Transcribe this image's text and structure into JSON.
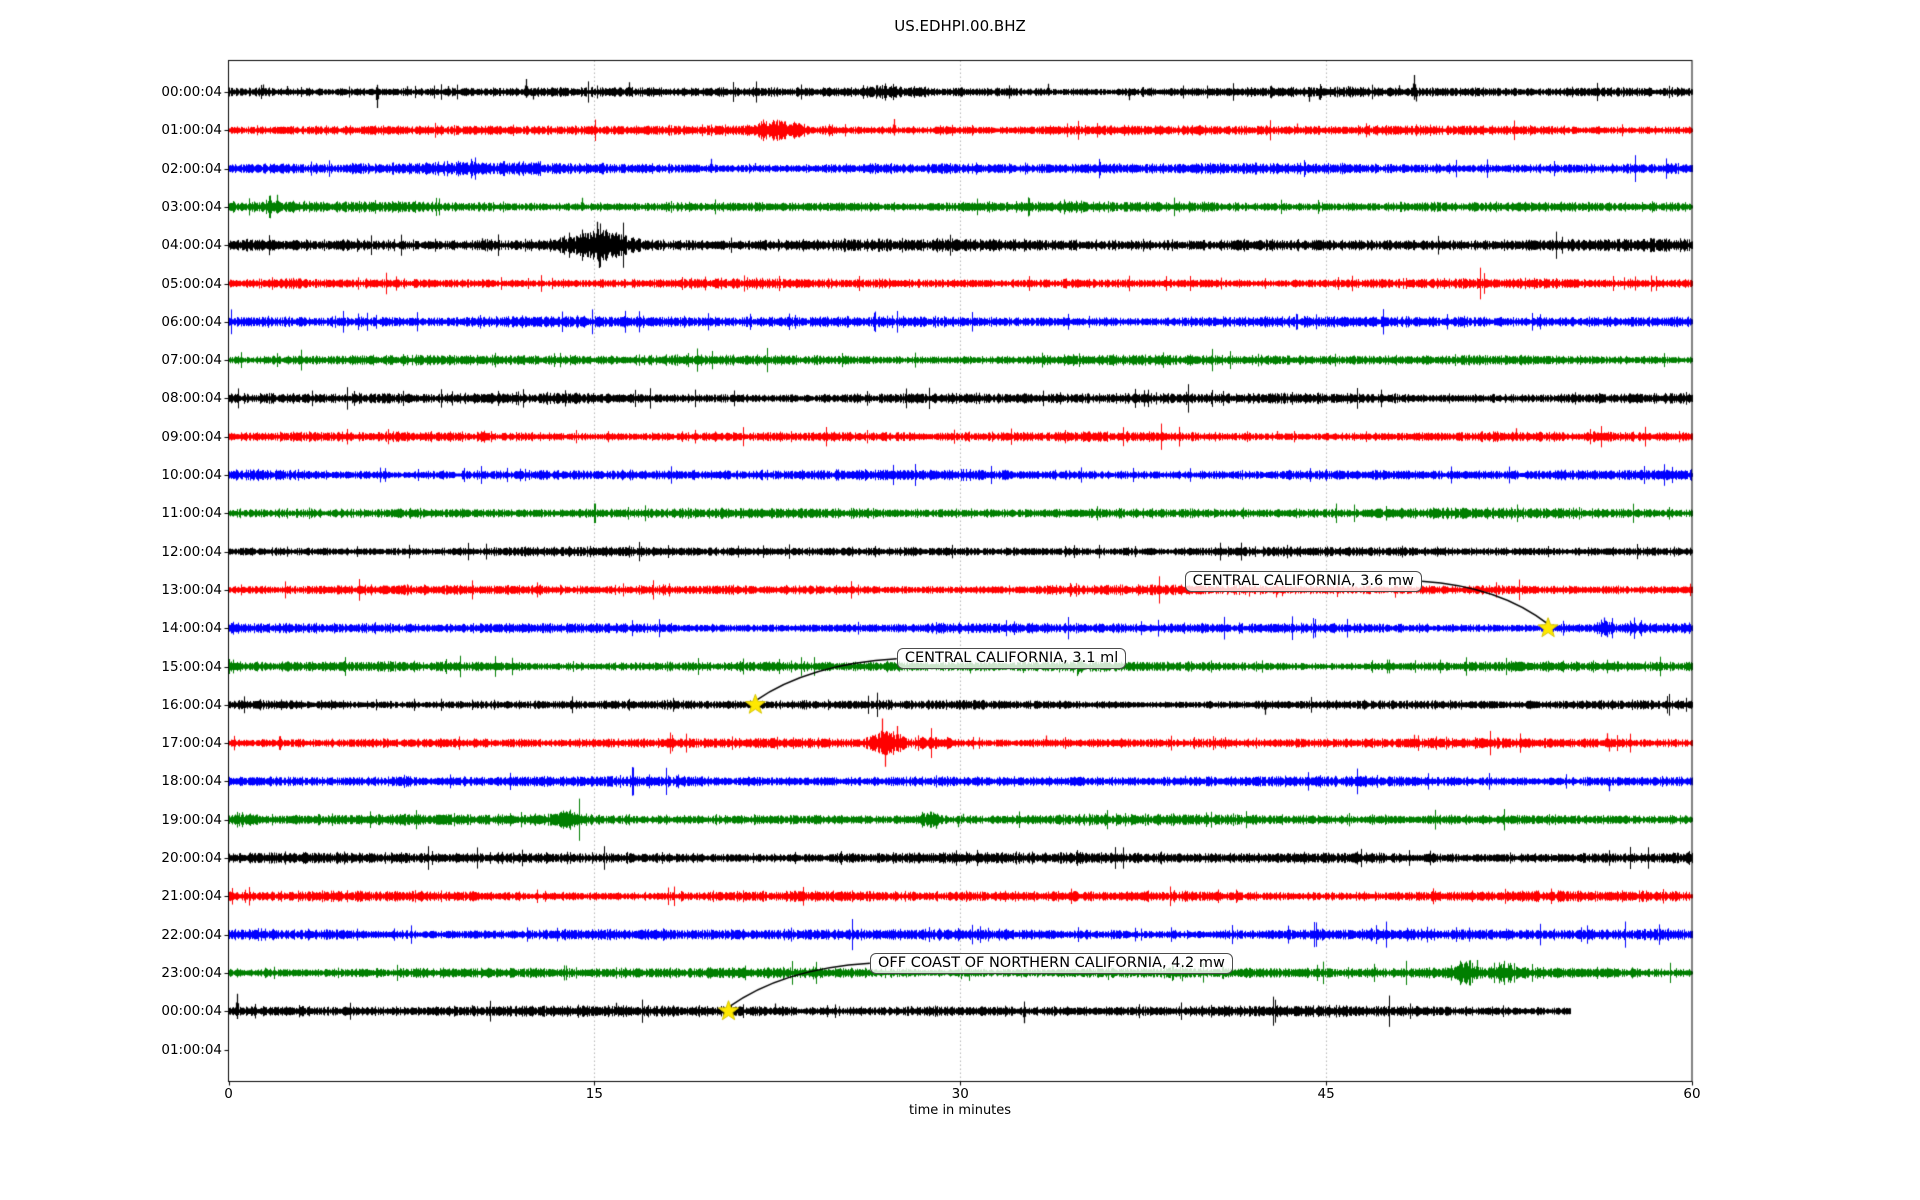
{
  "page": {
    "title": "US.EDHPI.00.BHZ"
  },
  "chart_data": {
    "type": "line",
    "subtype": "helicorder-dayplot",
    "title": "US.EDHPI.00.BHZ",
    "xlabel": "time in minutes",
    "xlim": [
      0,
      60
    ],
    "x_ticks": [
      "0",
      "15",
      "30",
      "45",
      "60"
    ],
    "grid_minutes": [
      15,
      30,
      45
    ],
    "grid_on": true,
    "trace_color_cycle": [
      "#000000",
      "#ff0000",
      "#0000ff",
      "#007f00"
    ],
    "marker": {
      "shape": "star",
      "color": "#ffe800"
    },
    "rows": [
      {
        "label": "00:00:04",
        "color": "#000000",
        "amp": 1.0,
        "trace": true,
        "events": [
          {
            "x": 26.9,
            "w": 1.6,
            "amp": 1.6
          }
        ],
        "spikes": [
          {
            "x": 1.4,
            "a": 2.0
          },
          {
            "x": 2.4,
            "a": 1.6
          },
          {
            "x": 6.1,
            "a": -4.2
          },
          {
            "x": 7.3,
            "a": 1.5
          },
          {
            "x": 9.0,
            "a": 1.6
          },
          {
            "x": 12.2,
            "a": 3.4
          },
          {
            "x": 12.5,
            "a": -2.0
          },
          {
            "x": 16.4,
            "a": 2.6
          },
          {
            "x": 26.6,
            "a": 1.8
          },
          {
            "x": 33.6,
            "a": 2.2
          },
          {
            "x": 36.9,
            "a": -2.2
          },
          {
            "x": 44.3,
            "a": -2.6
          },
          {
            "x": 44.7,
            "a": -2.0
          },
          {
            "x": 45.9,
            "a": 1.6
          },
          {
            "x": 48.0,
            "a": 1.8
          },
          {
            "x": 48.6,
            "a": 4.5
          },
          {
            "x": 48.7,
            "a": -2.5
          }
        ]
      },
      {
        "label": "01:00:04",
        "color": "#ff0000",
        "amp": 1.0,
        "trace": true,
        "events": [
          {
            "x": 22.4,
            "w": 1.4,
            "amp": 2.6
          },
          {
            "x": 23.3,
            "w": 0.8,
            "amp": 2.1
          },
          {
            "x": 24.6,
            "w": 0.5,
            "amp": 1.5
          },
          {
            "x": 29.4,
            "w": 0.6,
            "amp": 1.7
          },
          {
            "x": 30.5,
            "w": 0.4,
            "amp": 1.4
          }
        ],
        "spikes": [
          {
            "x": 27.3,
            "a": 3.0
          },
          {
            "x": 21.9,
            "a": -2.2
          },
          {
            "x": 43.8,
            "a": 1.8
          }
        ]
      },
      {
        "label": "02:00:04",
        "color": "#0000ff",
        "amp": 1.1,
        "trace": true,
        "events": [
          {
            "x": 8.8,
            "w": 3.5,
            "amp": 1.45
          },
          {
            "x": 12.0,
            "w": 2.0,
            "amp": 1.35
          },
          {
            "x": 5.2,
            "w": 1.0,
            "amp": 1.3
          }
        ],
        "spikes": [
          {
            "x": 19.8,
            "a": 2.6
          },
          {
            "x": 21.6,
            "a": 1.5
          },
          {
            "x": 26.5,
            "a": 1.4
          },
          {
            "x": 36.5,
            "a": 1.4
          }
        ]
      },
      {
        "label": "03:00:04",
        "color": "#007f00",
        "amp": 1.05,
        "trace": true,
        "events": [
          {
            "x": 1.8,
            "w": 1.2,
            "amp": 1.5
          }
        ],
        "spikes": [
          {
            "x": 2.0,
            "a": 3.2
          },
          {
            "x": 3.1,
            "a": 1.6
          },
          {
            "x": 14.5,
            "a": 2.4
          }
        ]
      },
      {
        "label": "04:00:04",
        "color": "#000000",
        "amp": 1.25,
        "trace": true,
        "events": [
          {
            "x": 15.2,
            "w": 2.4,
            "amp": 3.0
          },
          {
            "x": 14.3,
            "w": 0.8,
            "amp": 2.0
          }
        ],
        "spikes": [
          {
            "x": 15.1,
            "a": 6.2
          },
          {
            "x": 15.2,
            "a": -6.0
          },
          {
            "x": 14.6,
            "a": 3.2
          },
          {
            "x": 14.7,
            "a": -2.8
          },
          {
            "x": 15.6,
            "a": 3.2
          },
          {
            "x": 16.1,
            "a": 2.4
          },
          {
            "x": 16.2,
            "a": -2.2
          },
          {
            "x": 10.4,
            "a": 1.8
          }
        ]
      },
      {
        "label": "05:00:04",
        "color": "#ff0000",
        "amp": 1.0,
        "trace": true,
        "events": [
          {
            "x": 2.6,
            "w": 1.2,
            "amp": 1.35
          }
        ],
        "spikes": []
      },
      {
        "label": "06:00:04",
        "color": "#0000ff",
        "amp": 1.12,
        "trace": true,
        "events": [
          {
            "x": 5.0,
            "w": 8.0,
            "amp": 1.15
          }
        ],
        "spikes": []
      },
      {
        "label": "07:00:04",
        "color": "#007f00",
        "amp": 1.05,
        "trace": true,
        "events": [],
        "spikes": []
      },
      {
        "label": "08:00:04",
        "color": "#000000",
        "amp": 1.1,
        "trace": true,
        "events": [],
        "spikes": []
      },
      {
        "label": "09:00:04",
        "color": "#ff0000",
        "amp": 1.0,
        "trace": true,
        "events": [],
        "spikes": [
          {
            "x": 52.8,
            "a": 2.2
          },
          {
            "x": 43.0,
            "a": 1.5
          }
        ]
      },
      {
        "label": "10:00:04",
        "color": "#0000ff",
        "amp": 1.05,
        "trace": true,
        "events": [],
        "spikes": []
      },
      {
        "label": "11:00:04",
        "color": "#007f00",
        "amp": 1.05,
        "trace": true,
        "events": [],
        "spikes": []
      },
      {
        "label": "12:00:04",
        "color": "#000000",
        "amp": 0.95,
        "trace": true,
        "events": [],
        "spikes": []
      },
      {
        "label": "13:00:04",
        "color": "#ff0000",
        "amp": 1.0,
        "trace": true,
        "events": [],
        "spikes": []
      },
      {
        "label": "14:00:04",
        "color": "#0000ff",
        "amp": 1.05,
        "trace": true,
        "events": [
          {
            "x": 56.4,
            "w": 0.5,
            "amp": 1.8
          }
        ],
        "spikes": [
          {
            "x": 56.4,
            "a": 2.8
          },
          {
            "x": 56.5,
            "a": -2.4
          }
        ]
      },
      {
        "label": "15:00:04",
        "color": "#007f00",
        "amp": 1.05,
        "trace": true,
        "events": [],
        "spikes": []
      },
      {
        "label": "16:00:04",
        "color": "#000000",
        "amp": 0.95,
        "trace": true,
        "events": [],
        "spikes": [
          {
            "x": 42.5,
            "a": -2.6
          }
        ]
      },
      {
        "label": "17:00:04",
        "color": "#ff0000",
        "amp": 1.0,
        "trace": true,
        "events": [
          {
            "x": 27.0,
            "w": 1.3,
            "amp": 3.2
          },
          {
            "x": 28.7,
            "w": 0.9,
            "amp": 2.0
          },
          {
            "x": 29.6,
            "w": 0.5,
            "amp": 1.6
          }
        ],
        "spikes": [
          {
            "x": 26.8,
            "a": 6.5
          },
          {
            "x": 26.9,
            "a": -6.2
          },
          {
            "x": 27.4,
            "a": 4.5
          },
          {
            "x": 33.5,
            "a": 2.0
          },
          {
            "x": 48.6,
            "a": 2.2
          },
          {
            "x": 56.5,
            "a": 2.6
          },
          {
            "x": 56.6,
            "a": -2.2
          }
        ]
      },
      {
        "label": "18:00:04",
        "color": "#0000ff",
        "amp": 1.08,
        "trace": true,
        "events": [
          {
            "x": 7.0,
            "w": 1.0,
            "amp": 1.6
          }
        ],
        "spikes": [
          {
            "x": 56.6,
            "a": -2.6
          },
          {
            "x": 39.2,
            "a": 1.5
          }
        ]
      },
      {
        "label": "19:00:04",
        "color": "#007f00",
        "amp": 1.1,
        "trace": true,
        "events": [
          {
            "x": 0.6,
            "w": 1.2,
            "amp": 1.8
          },
          {
            "x": 13.8,
            "w": 1.5,
            "amp": 2.0
          },
          {
            "x": 28.7,
            "w": 0.8,
            "amp": 2.2
          }
        ],
        "spikes": [
          {
            "x": 29.0,
            "a": -2.4
          },
          {
            "x": 29.9,
            "a": -2.0
          },
          {
            "x": 30.1,
            "a": 1.6
          }
        ]
      },
      {
        "label": "20:00:04",
        "color": "#000000",
        "amp": 1.15,
        "trace": true,
        "events": [],
        "spikes": []
      },
      {
        "label": "21:00:04",
        "color": "#ff0000",
        "amp": 1.1,
        "trace": true,
        "events": [],
        "spikes": []
      },
      {
        "label": "22:00:04",
        "color": "#0000ff",
        "amp": 1.15,
        "trace": true,
        "events": [],
        "spikes": []
      },
      {
        "label": "23:00:04",
        "color": "#007f00",
        "amp": 1.1,
        "trace": true,
        "events": [
          {
            "x": 50.7,
            "w": 0.9,
            "amp": 2.4
          },
          {
            "x": 52.4,
            "w": 0.9,
            "amp": 2.0
          }
        ],
        "spikes": [
          {
            "x": 51.2,
            "a": 3.4
          },
          {
            "x": 47.0,
            "a": 1.5
          }
        ]
      },
      {
        "label": "00:00:04",
        "color": "#000000",
        "amp": 1.1,
        "trace": true,
        "end": 55.0,
        "events": [
          {
            "x": 21.5,
            "w": 3.0,
            "amp": 1.25
          }
        ],
        "spikes": [
          {
            "x": 0.35,
            "a": 4.6
          },
          {
            "x": 10.0,
            "a": 1.6
          },
          {
            "x": 15.9,
            "a": 2.2
          },
          {
            "x": 22.4,
            "a": 2.0
          },
          {
            "x": 28.0,
            "a": 1.4
          },
          {
            "x": 32.6,
            "a": -3.2
          }
        ]
      },
      {
        "label": "01:00:04",
        "color": "#000000",
        "amp": 0,
        "trace": false,
        "events": [],
        "spikes": []
      }
    ],
    "annotations": [
      {
        "text": "CENTRAL CALIFORNIA, 3.6 mw",
        "row": 14,
        "minute": 54.1,
        "label_min": 39.2,
        "label_dy": -47,
        "side": "right"
      },
      {
        "text": "CENTRAL CALIFORNIA, 3.1 ml",
        "row": 16,
        "minute": 21.6,
        "label_min": 27.4,
        "label_dy": -46,
        "side": "left"
      },
      {
        "text": "OFF COAST OF NORTHERN CALIFORNIA, 4.2 mw",
        "row": 24,
        "minute": 20.5,
        "label_min": 26.3,
        "label_dy": -48,
        "side": "left"
      }
    ]
  }
}
